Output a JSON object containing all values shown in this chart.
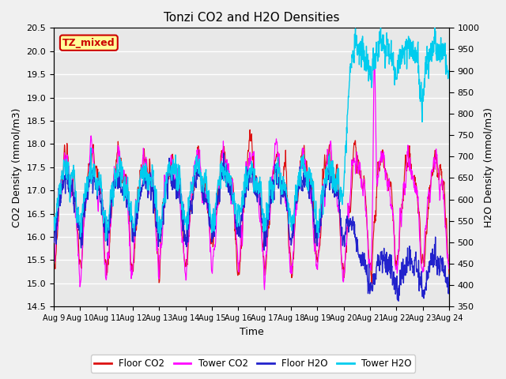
{
  "title": "Tonzi CO2 and H2O Densities",
  "xlabel": "Time",
  "ylabel_left": "CO2 Density (mmol/m3)",
  "ylabel_right": "H2O Density (mmol/m3)",
  "ylim_left": [
    14.5,
    20.5
  ],
  "ylim_right": [
    350,
    1000
  ],
  "yticks_left": [
    14.5,
    15.0,
    15.5,
    16.0,
    16.5,
    17.0,
    17.5,
    18.0,
    18.5,
    19.0,
    19.5,
    20.0,
    20.5
  ],
  "yticks_right": [
    350,
    400,
    450,
    500,
    550,
    600,
    650,
    700,
    750,
    800,
    850,
    900,
    950,
    1000
  ],
  "xtick_labels": [
    "Aug 9",
    "Aug 10",
    "Aug 11",
    "Aug 12",
    "Aug 13",
    "Aug 14",
    "Aug 15",
    "Aug 16",
    "Aug 17",
    "Aug 18",
    "Aug 19",
    "Aug 20",
    "Aug 21",
    "Aug 22",
    "Aug 23",
    "Aug 24"
  ],
  "annotation_text": "TZ_mixed",
  "annotation_color": "#cc0000",
  "annotation_bg": "#ffff99",
  "annotation_border": "#cc0000",
  "floor_co2_color": "#dd1111",
  "tower_co2_color": "#ff00ff",
  "floor_h2o_color": "#2222cc",
  "tower_h2o_color": "#00ccee",
  "legend_labels": [
    "Floor CO2",
    "Tower CO2",
    "Floor H2O",
    "Tower H2O"
  ],
  "plot_bg": "#e8e8e8",
  "fig_bg": "#f0f0f0",
  "grid_color": "#ffffff",
  "seed": 7
}
